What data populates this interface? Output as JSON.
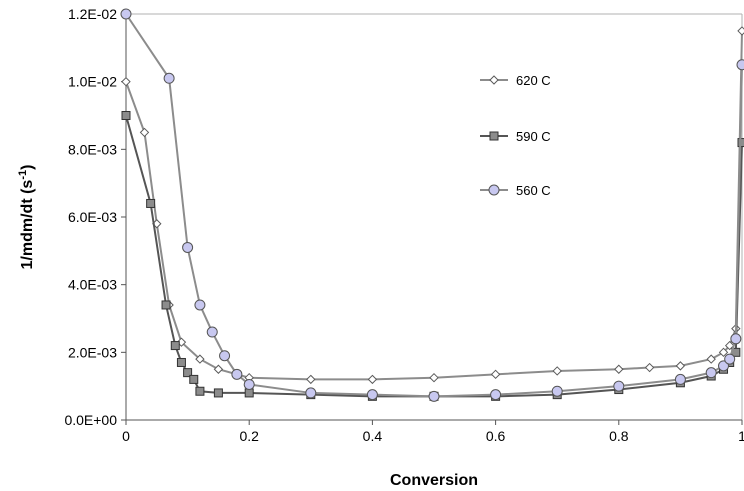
{
  "chart_data": {
    "type": "scatter",
    "xlabel": "Conversion",
    "ylabel_main": "1/mdm/dt (s",
    "ylabel_sup": "-1",
    "ylabel_close": ")",
    "xlim": [
      0,
      1
    ],
    "ylim": [
      0,
      0.012
    ],
    "x_ticks": [
      0,
      0.2,
      0.4,
      0.6,
      0.8,
      1
    ],
    "x_tick_labels": [
      "0",
      "0.2",
      "0.4",
      "0.6",
      "0.8",
      "1"
    ],
    "y_ticks": [
      0,
      0.002,
      0.004,
      0.006,
      0.008,
      0.01,
      0.012
    ],
    "y_tick_labels": [
      "0.0E+00",
      "2.0E-03",
      "4.0E-03",
      "6.0E-03",
      "8.0E-03",
      "1.0E-02",
      "1.2E-02"
    ],
    "grid": false,
    "legend_position": "right",
    "series": [
      {
        "name": "620 C",
        "marker": "diamond",
        "fill": "#ffffff",
        "stroke": "#5a5a5a",
        "line": "#8c8c8c",
        "x": [
          0,
          0.03,
          0.05,
          0.07,
          0.09,
          0.12,
          0.15,
          0.2,
          0.3,
          0.4,
          0.5,
          0.6,
          0.7,
          0.8,
          0.85,
          0.9,
          0.95,
          0.97,
          0.98,
          0.99,
          1.0
        ],
        "y": [
          0.01,
          0.0085,
          0.0058,
          0.0034,
          0.0023,
          0.0018,
          0.0015,
          0.00125,
          0.0012,
          0.0012,
          0.00125,
          0.00135,
          0.00145,
          0.0015,
          0.00155,
          0.0016,
          0.0018,
          0.002,
          0.0022,
          0.0027,
          0.0115
        ]
      },
      {
        "name": "590 C",
        "marker": "square",
        "fill": "#8c8c8c",
        "stroke": "#333333",
        "line": "#555555",
        "x": [
          0,
          0.04,
          0.065,
          0.08,
          0.09,
          0.1,
          0.11,
          0.12,
          0.15,
          0.2,
          0.3,
          0.4,
          0.5,
          0.6,
          0.7,
          0.8,
          0.9,
          0.95,
          0.97,
          0.98,
          0.99,
          1.0
        ],
        "y": [
          0.009,
          0.0064,
          0.0034,
          0.0022,
          0.0017,
          0.0014,
          0.0012,
          0.00085,
          0.0008,
          0.0008,
          0.00075,
          0.0007,
          0.0007,
          0.0007,
          0.00075,
          0.0009,
          0.0011,
          0.0013,
          0.0015,
          0.0017,
          0.002,
          0.0082
        ]
      },
      {
        "name": "560 C",
        "marker": "circle",
        "fill": "#c8c8f0",
        "stroke": "#555555",
        "line": "#8c8c8c",
        "x": [
          0,
          0.07,
          0.1,
          0.12,
          0.14,
          0.16,
          0.18,
          0.2,
          0.3,
          0.4,
          0.5,
          0.6,
          0.7,
          0.8,
          0.9,
          0.95,
          0.97,
          0.98,
          0.99,
          1.0
        ],
        "y": [
          0.012,
          0.0101,
          0.0051,
          0.0034,
          0.0026,
          0.0019,
          0.00135,
          0.00105,
          0.0008,
          0.00075,
          0.0007,
          0.00075,
          0.00085,
          0.001,
          0.0012,
          0.0014,
          0.0016,
          0.0018,
          0.0024,
          0.0105
        ]
      }
    ]
  }
}
